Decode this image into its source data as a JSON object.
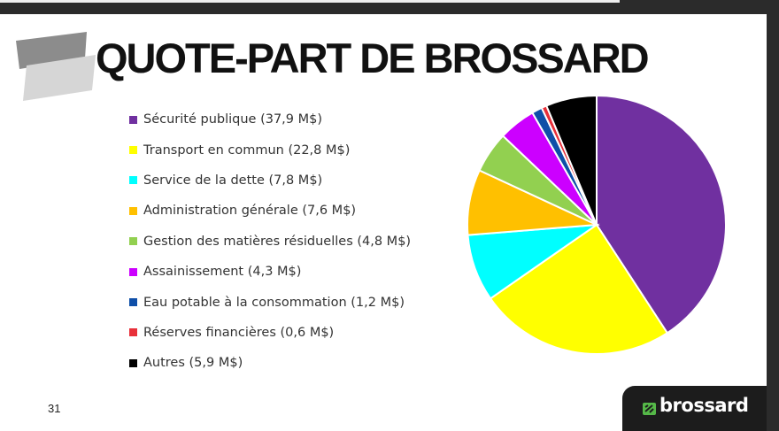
{
  "slide": {
    "title": "QUOTE-PART DE BROSSARD",
    "page_number": "31",
    "logo_text": "brossard"
  },
  "colors": {
    "logo_accent": "#55b848",
    "logo_tab": "#1c1c1c"
  },
  "chart_data": {
    "type": "pie",
    "title": "",
    "legend_position": "left",
    "start_angle": "12 o'clock, clockwise",
    "categories": [
      "Sécurité publique",
      "Transport en commun",
      "Service de la dette",
      "Administration générale",
      "Gestion des matières résiduelles",
      "Assainissement",
      "Eau potable à la consommation",
      "Réserves financières",
      "Autres"
    ],
    "values": [
      37.9,
      22.8,
      7.8,
      7.6,
      4.8,
      4.3,
      1.2,
      0.6,
      5.9
    ],
    "unit": "M$",
    "labels": [
      "Sécurité publique (37,9 M$)",
      "Transport en commun (22,8 M$)",
      "Service de la dette (7,8 M$)",
      "Administration générale (7,6 M$)",
      "Gestion des matières résiduelles (4,8 M$)",
      "Assainissement (4,3 M$)",
      "Eau potable à la consommation (1,2 M$)",
      "Réserves financières (0,6 M$)",
      "Autres (5,9 M$)"
    ],
    "colors": [
      "#7030a0",
      "#ffff00",
      "#00ffff",
      "#ffc000",
      "#92d050",
      "#cc00ff",
      "#0f4fa8",
      "#e8303a",
      "#000000"
    ]
  }
}
